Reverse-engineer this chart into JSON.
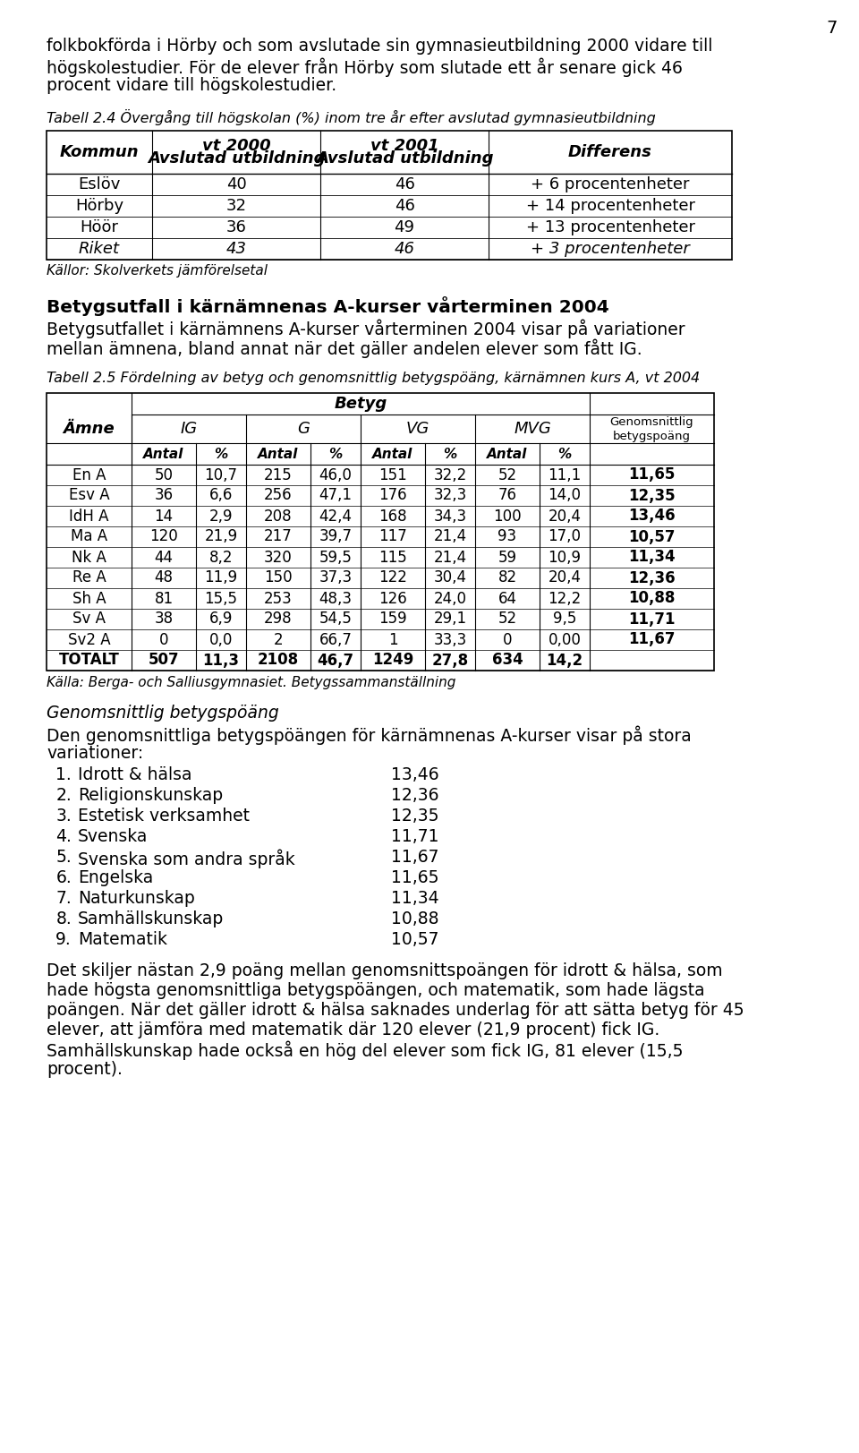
{
  "page_number": "7",
  "bg_color": "#ffffff",
  "intro_lines": [
    "folkbokförda i Hörby och som avslutade sin gymnasieutbildning 2000 vidare till",
    "högskolestudier. För de elever från Hörby som slutade ett år senare gick 46",
    "procent vidare till högskolestudier."
  ],
  "table1_caption": "Tabell 2.4 Övergång till högskolan (%) inom tre år efter avslutad gymnasieutbildning",
  "table1_headers": [
    "Kommun",
    "Avslutad utbildning\nvt 2000",
    "Avslutad utbildning\nvt 2001",
    "Differens"
  ],
  "table1_rows": [
    [
      "Eslöv",
      "40",
      "46",
      "+ 6 procentenheter"
    ],
    [
      "Hörby",
      "32",
      "46",
      "+ 14 procentenheter"
    ],
    [
      "Höör",
      "36",
      "49",
      "+ 13 procentenheter"
    ],
    [
      "Riket",
      "43",
      "46",
      "+ 3 procentenheter"
    ]
  ],
  "table1_note": "Källor: Skolverkets jämförelsetal",
  "section2_title": "Betygsutfall i kärnämnenas A-kurser vårterminen 2004",
  "section2_lines": [
    "Betygsutfallet i kärnämnens A-kurser vårterminen 2004 visar på variationer",
    "mellan ämnena, bland annat när det gäller andelen elever som fått IG."
  ],
  "table2_caption": "Tabell 2.5 Fördelning av betyg och genomsnittlig betygspöäng, kärnämnen kurs A, vt 2004",
  "table2_rows": [
    [
      "En A",
      "50",
      "10,7",
      "215",
      "46,0",
      "151",
      "32,2",
      "52",
      "11,1",
      "11,65"
    ],
    [
      "Esv A",
      "36",
      "6,6",
      "256",
      "47,1",
      "176",
      "32,3",
      "76",
      "14,0",
      "12,35"
    ],
    [
      "IdH A",
      "14",
      "2,9",
      "208",
      "42,4",
      "168",
      "34,3",
      "100",
      "20,4",
      "13,46"
    ],
    [
      "Ma A",
      "120",
      "21,9",
      "217",
      "39,7",
      "117",
      "21,4",
      "93",
      "17,0",
      "10,57"
    ],
    [
      "Nk A",
      "44",
      "8,2",
      "320",
      "59,5",
      "115",
      "21,4",
      "59",
      "10,9",
      "11,34"
    ],
    [
      "Re A",
      "48",
      "11,9",
      "150",
      "37,3",
      "122",
      "30,4",
      "82",
      "20,4",
      "12,36"
    ],
    [
      "Sh A",
      "81",
      "15,5",
      "253",
      "48,3",
      "126",
      "24,0",
      "64",
      "12,2",
      "10,88"
    ],
    [
      "Sv A",
      "38",
      "6,9",
      "298",
      "54,5",
      "159",
      "29,1",
      "52",
      "9,5",
      "11,71"
    ],
    [
      "Sv2 A",
      "0",
      "0,0",
      "2",
      "66,7",
      "1",
      "33,3",
      "0",
      "0,00",
      "11,67"
    ],
    [
      "TOTALT",
      "507",
      "11,3",
      "2108",
      "46,7",
      "1249",
      "27,8",
      "634",
      "14,2",
      ""
    ]
  ],
  "table2_note": "Källa: Berga- och Salliusgymnasiet. Betygssammanställning",
  "section3_title": "Genomsnittlig betygspöäng",
  "section3_lines": [
    "Den genomsnittliga betygspöängen för kärnämnenas A-kurser visar på stora",
    "variationer:"
  ],
  "ranked_list": [
    [
      "1.",
      "Idrott & hälsa",
      "13,46"
    ],
    [
      "2.",
      "Religionskunskap",
      "12,36"
    ],
    [
      "3.",
      "Estetisk verksamhet",
      "12,35"
    ],
    [
      "4.",
      "Svenska",
      "11,71"
    ],
    [
      "5.",
      "Svenska som andra språk",
      "11,67"
    ],
    [
      "6.",
      "Engelska",
      "11,65"
    ],
    [
      "7.",
      "Naturkunskap",
      "11,34"
    ],
    [
      "8.",
      "Samhällskunskap",
      "10,88"
    ],
    [
      "9.",
      "Matematik",
      "10,57"
    ]
  ],
  "closing_lines": [
    "Det skiljer nästan 2,9 poäng mellan genomsnittspoängen för idrott & hälsa, som",
    "hade högsta genomsnittliga betygspöängen, och matematik, som hade lägsta",
    "poängen. När det gäller idrott & hälsa saknades underlag för att sätta betyg för 45",
    "elever, att jämföra med matematik där 120 elever (21,9 procent) fick IG.",
    "Samhällskunskap hade också en hög del elever som fick IG, 81 elever (15,5",
    "procent)."
  ]
}
